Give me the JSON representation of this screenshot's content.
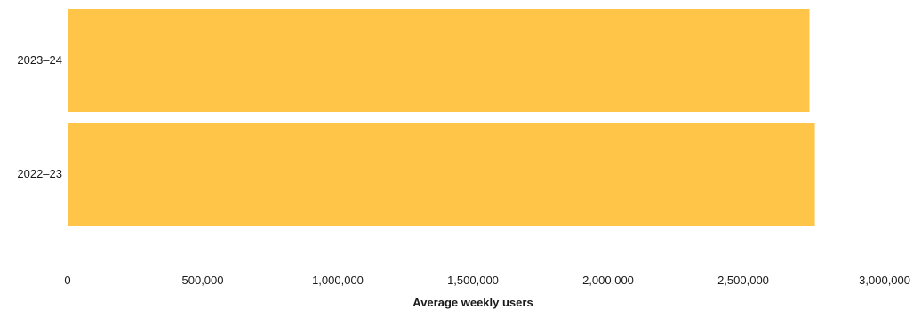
{
  "chart_data": {
    "type": "bar",
    "orientation": "horizontal",
    "categories": [
      "2023–24",
      "2022–23"
    ],
    "values": [
      2745000,
      2765000
    ],
    "xlabel": "Average weekly users",
    "ylabel": "",
    "xlim": [
      0,
      3000000
    ],
    "xticks": [
      0,
      500000,
      1000000,
      1500000,
      2000000,
      2500000,
      3000000
    ],
    "xtick_labels": [
      "0",
      "500,000",
      "1,000,000",
      "1,500,000",
      "2,000,000",
      "2,500,000",
      "3,000,000"
    ],
    "grid": false,
    "bar_color": "#FEC548"
  }
}
